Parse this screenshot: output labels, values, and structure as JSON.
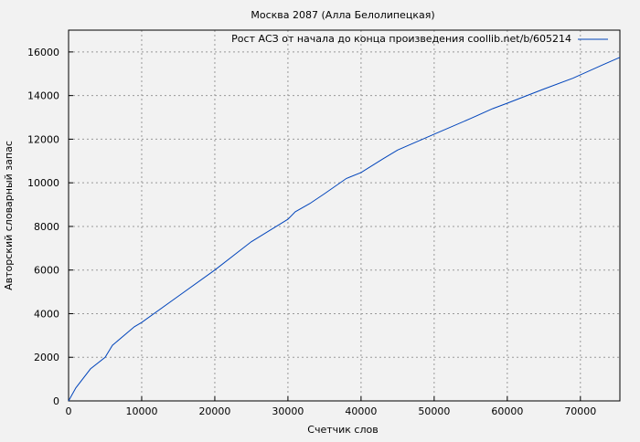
{
  "chart_data": {
    "type": "line",
    "title": "Москва 2087 (Алла Белолипецкая)",
    "xlabel": "Счетчик слов",
    "ylabel": "Авторский словарный запас",
    "xlim": [
      0,
      75400
    ],
    "ylim": [
      0,
      17000
    ],
    "xticks": [
      0,
      10000,
      20000,
      30000,
      40000,
      50000,
      60000,
      70000
    ],
    "yticks": [
      0,
      2000,
      4000,
      6000,
      8000,
      10000,
      12000,
      14000,
      16000
    ],
    "grid": true,
    "legend_position": "top-right",
    "series": [
      {
        "name": "Рост АСЗ от начала до конца произведения coollib.net/b/605214",
        "color": "#0044bb",
        "x": [
          0,
          1000,
          3000,
          5000,
          6000,
          9000,
          10000,
          15000,
          20000,
          25000,
          30000,
          31000,
          33000,
          35000,
          38000,
          40000,
          43000,
          45000,
          46000,
          50000,
          55000,
          58000,
          60000,
          65000,
          69000,
          70000,
          73000,
          75400
        ],
        "y": [
          0,
          600,
          1470,
          2000,
          2550,
          3400,
          3600,
          4800,
          6000,
          7300,
          8330,
          8670,
          9050,
          9500,
          10200,
          10470,
          11100,
          11500,
          11650,
          12230,
          12950,
          13400,
          13650,
          14300,
          14800,
          14950,
          15400,
          15750
        ]
      }
    ]
  }
}
